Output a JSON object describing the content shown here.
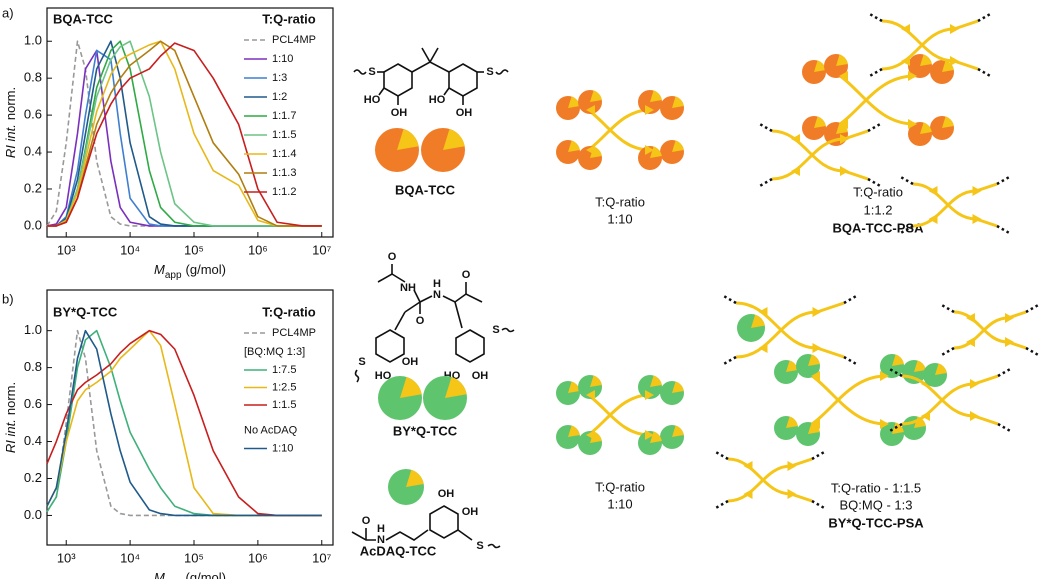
{
  "chart_data": [
    {
      "type": "line",
      "panel": "a)",
      "title": "BQA-TCC",
      "legend_title": "T:Q-ratio",
      "x_label": {
        "symbol": "M",
        "subscript": "app",
        "unit": "(g/mol)"
      },
      "y_label": {
        "italic": "RI int.",
        "plain": "norm."
      },
      "xscale": "log",
      "xlim": [
        500,
        15000000
      ],
      "xticks": [
        {
          "value": 1000,
          "label": "10³"
        },
        {
          "value": 10000,
          "label": "10⁴"
        },
        {
          "value": 100000,
          "label": "10⁵"
        },
        {
          "value": 1000000,
          "label": "10⁶"
        },
        {
          "value": 10000000,
          "label": "10⁷"
        }
      ],
      "ylim": [
        -0.06,
        1.18
      ],
      "yticks": [
        {
          "value": 0,
          "label": "0.0"
        },
        {
          "value": 0.2,
          "label": "0.2"
        },
        {
          "value": 0.4,
          "label": "0.4"
        },
        {
          "value": 0.6,
          "label": "0.6"
        },
        {
          "value": 0.8,
          "label": "0.8"
        },
        {
          "value": 1,
          "label": "1.0"
        }
      ],
      "x": [
        500,
        700,
        1000,
        1500,
        2000,
        3000,
        5000,
        7000,
        10000,
        20000,
        30000,
        50000,
        100000,
        200000,
        500000,
        1000000,
        2000000,
        5000000,
        10000000
      ],
      "series": [
        {
          "name": "PCL4MP",
          "color": "#999999",
          "style": "dashed",
          "values": [
            0,
            0.08,
            0.45,
            1.0,
            0.85,
            0.35,
            0.05,
            0.01,
            0,
            0,
            0,
            0,
            0,
            0,
            0,
            0,
            0,
            0,
            0
          ]
        },
        {
          "name": "1:10",
          "color": "#7b2fbe",
          "values": [
            0,
            0.01,
            0.1,
            0.5,
            0.85,
            0.95,
            0.35,
            0.1,
            0.02,
            0,
            0,
            0,
            0,
            0,
            0,
            0,
            0,
            0,
            0
          ]
        },
        {
          "name": "1:3",
          "color": "#3f7fd0",
          "values": [
            0,
            0,
            0.05,
            0.3,
            0.6,
            0.95,
            0.9,
            0.5,
            0.15,
            0.01,
            0,
            0,
            0,
            0,
            0,
            0,
            0,
            0,
            0
          ]
        },
        {
          "name": "1:2",
          "color": "#1f5a8a",
          "values": [
            0,
            0,
            0.04,
            0.25,
            0.5,
            0.85,
            1.0,
            0.8,
            0.45,
            0.05,
            0.01,
            0,
            0,
            0,
            0,
            0,
            0,
            0,
            0
          ]
        },
        {
          "name": "1:1.7",
          "color": "#2faa44",
          "values": [
            0,
            0,
            0.03,
            0.2,
            0.42,
            0.75,
            0.95,
            1.0,
            0.85,
            0.3,
            0.1,
            0.02,
            0,
            0,
            0,
            0,
            0,
            0,
            0
          ]
        },
        {
          "name": "1:1.5",
          "color": "#6cc486",
          "values": [
            0,
            0,
            0.03,
            0.2,
            0.4,
            0.7,
            0.9,
            0.97,
            1.0,
            0.7,
            0.4,
            0.12,
            0.02,
            0,
            0,
            0,
            0,
            0,
            0
          ]
        },
        {
          "name": "1:1.4",
          "color": "#e8b818",
          "values": [
            0,
            0,
            0.03,
            0.18,
            0.36,
            0.62,
            0.82,
            0.9,
            0.93,
            0.98,
            1.0,
            0.85,
            0.5,
            0.3,
            0.22,
            0.03,
            0,
            0,
            0
          ]
        },
        {
          "name": "1:1.3",
          "color": "#b07d10",
          "values": [
            0,
            0,
            0.02,
            0.15,
            0.32,
            0.55,
            0.72,
            0.8,
            0.87,
            0.95,
            1.0,
            0.95,
            0.7,
            0.45,
            0.28,
            0.05,
            0,
            0,
            0
          ]
        },
        {
          "name": "1:1.2",
          "color": "#c81e1e",
          "values": [
            0,
            0,
            0.02,
            0.15,
            0.3,
            0.5,
            0.66,
            0.74,
            0.8,
            0.85,
            0.92,
            0.99,
            0.95,
            0.8,
            0.55,
            0.2,
            0.02,
            0,
            0
          ]
        }
      ]
    },
    {
      "type": "line",
      "panel": "b)",
      "title": "BY*Q-TCC",
      "legend_title": "T:Q-ratio",
      "x_label": {
        "symbol": "M",
        "subscript": "app",
        "unit": "(g/mol)"
      },
      "y_label": {
        "italic": "RI int.",
        "plain": "norm."
      },
      "xscale": "log",
      "xlim": [
        500,
        15000000
      ],
      "xticks": [
        {
          "value": 1000,
          "label": "10³"
        },
        {
          "value": 10000,
          "label": "10⁴"
        },
        {
          "value": 100000,
          "label": "10⁵"
        },
        {
          "value": 1000000,
          "label": "10⁶"
        },
        {
          "value": 10000000,
          "label": "10⁷"
        }
      ],
      "ylim": [
        -0.16,
        1.22
      ],
      "yticks": [
        {
          "value": 0,
          "label": "0.0"
        },
        {
          "value": 0.2,
          "label": "0.2"
        },
        {
          "value": 0.4,
          "label": "0.4"
        },
        {
          "value": 0.6,
          "label": "0.6"
        },
        {
          "value": 0.8,
          "label": "0.8"
        },
        {
          "value": 1,
          "label": "1.0"
        }
      ],
      "x": [
        500,
        700,
        1000,
        1500,
        2000,
        3000,
        5000,
        7000,
        10000,
        20000,
        30000,
        50000,
        100000,
        200000,
        500000,
        1000000,
        2000000,
        5000000,
        10000000
      ],
      "series": [
        {
          "name": "PCL4MP",
          "color": "#999999",
          "style": "dashed",
          "values": [
            0.02,
            0.1,
            0.5,
            1.0,
            0.85,
            0.35,
            0.05,
            0.01,
            0,
            0,
            0,
            0,
            0,
            0,
            0,
            0,
            0,
            0,
            0
          ]
        },
        {
          "name": "1:7.5",
          "group": "[BQ:MQ 1:3]",
          "color": "#3fb07a",
          "values": [
            0.02,
            0.1,
            0.4,
            0.8,
            0.95,
            1.0,
            0.8,
            0.62,
            0.45,
            0.25,
            0.15,
            0.05,
            0.01,
            0,
            0,
            0,
            0,
            0,
            0
          ]
        },
        {
          "name": "1:2.5",
          "group": "[BQ:MQ 1:3]",
          "color": "#e8b818",
          "values": [
            0.05,
            0.15,
            0.4,
            0.62,
            0.68,
            0.72,
            0.78,
            0.85,
            0.9,
            1.0,
            0.92,
            0.6,
            0.15,
            0.01,
            0,
            0,
            0,
            0,
            0
          ]
        },
        {
          "name": "1:1.5",
          "group": "[BQ:MQ 1:3]",
          "color": "#c81e1e",
          "values": [
            0.28,
            0.4,
            0.55,
            0.68,
            0.72,
            0.76,
            0.82,
            0.88,
            0.93,
            1.0,
            0.98,
            0.9,
            0.65,
            0.35,
            0.1,
            0.01,
            0,
            0,
            0
          ]
        },
        {
          "name": "1:10",
          "group": "No AcDAQ",
          "color": "#1f5a8a",
          "values": [
            0.05,
            0.15,
            0.45,
            0.85,
            1.0,
            0.9,
            0.55,
            0.35,
            0.18,
            0.03,
            0.01,
            0,
            0,
            0,
            0,
            0,
            0,
            0,
            0
          ]
        }
      ]
    }
  ],
  "molecules": {
    "bqa": {
      "label": "BQA-TCC",
      "atoms": [
        "S",
        "S",
        "HO",
        "OH",
        "HO",
        "OH"
      ]
    },
    "byq": {
      "label": "BY*Q-TCC",
      "atoms": [
        "O",
        "NH",
        "N",
        "H",
        "O",
        "O",
        "S",
        "HO",
        "OH",
        "S",
        "HO",
        "OH"
      ]
    },
    "acdaq": {
      "label": "AcDAQ-TCC",
      "atoms": [
        "O",
        "N",
        "H",
        "OH",
        "OH",
        "S"
      ]
    }
  },
  "schemes": [
    {
      "lines": [
        "T:Q-ratio",
        "1:10"
      ]
    },
    {
      "lines": [
        "T:Q-ratio",
        "1:1.2"
      ],
      "name": "BQA-TCC-PSA"
    },
    {
      "lines": [
        "T:Q-ratio",
        "1:10"
      ]
    },
    {
      "lines": [
        "T:Q-ratio - 1:1.5",
        "BQ:MQ - 1:3"
      ],
      "name": "BY*Q-TCC-PSA"
    }
  ]
}
